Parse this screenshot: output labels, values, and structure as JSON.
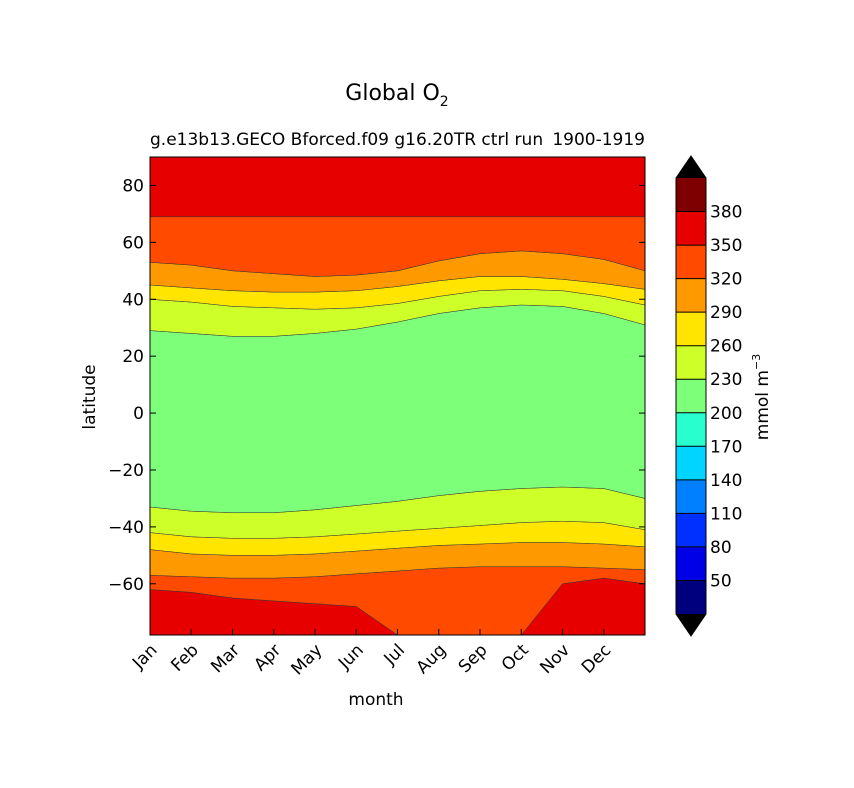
{
  "chart_data": {
    "type": "contourf",
    "title": "Global O",
    "title_subscript": "2",
    "subtitle_left": "g.e13b13.GECO Bforced.f09 g16.20TR ctrl run",
    "subtitle_right": "1900-1919",
    "xlabel": "month",
    "ylabel": "latitude",
    "x_categories": [
      "Jan",
      "Feb",
      "Mar",
      "Apr",
      "May",
      "Jun",
      "Jul",
      "Aug",
      "Sep",
      "Oct",
      "Nov",
      "Dec"
    ],
    "ylim": [
      -78,
      90
    ],
    "yticks": [
      80,
      60,
      40,
      20,
      0,
      -20,
      -40,
      -60
    ],
    "ytick_labels": [
      "80",
      "60",
      "40",
      "20",
      "0",
      "−20",
      "−40",
      "−60"
    ],
    "colorbar": {
      "label": "mmol m",
      "label_superscript": "−3",
      "levels": [
        20,
        50,
        80,
        110,
        140,
        170,
        200,
        230,
        260,
        290,
        320,
        350,
        380,
        410
      ],
      "tick_labels": [
        "50",
        "80",
        "110",
        "140",
        "170",
        "200",
        "230",
        "260",
        "290",
        "320",
        "350",
        "380"
      ],
      "colors": [
        "#00007f",
        "#0000e6",
        "#0030ff",
        "#0080ff",
        "#00d4ff",
        "#29ffce",
        "#7dff7a",
        "#ceff29",
        "#ffe500",
        "#ff9900",
        "#ff4a00",
        "#e60000",
        "#7f0000"
      ],
      "extend_low_color": "#000000",
      "extend_high_color": "#000000"
    },
    "boundaries": [
      {
        "name": "350-line-south",
        "values": [
          -62,
          -63,
          -65,
          -66,
          -67,
          -68,
          -78,
          -78,
          -78,
          -78,
          -60,
          -58,
          -60
        ]
      },
      {
        "name": "320-line-south",
        "values": [
          -57,
          -57.5,
          -58,
          -58,
          -57.5,
          -56.5,
          -55.5,
          -54.5,
          -54,
          -54,
          -54,
          -54.5,
          -55
        ]
      },
      {
        "name": "290-line-south",
        "values": [
          -48,
          -49.5,
          -50,
          -50,
          -49.5,
          -48.5,
          -47.5,
          -46.5,
          -46,
          -45.5,
          -45.5,
          -46,
          -47
        ]
      },
      {
        "name": "260-line-south",
        "values": [
          -42,
          -43.5,
          -44,
          -44,
          -43.5,
          -42.5,
          -41.5,
          -40.5,
          -39.5,
          -38.5,
          -38,
          -38.5,
          -41
        ]
      },
      {
        "name": "230-line-south",
        "values": [
          -33,
          -34.5,
          -35,
          -35,
          -34,
          -32.5,
          -31,
          -29,
          -27.5,
          -26.5,
          -26,
          -26.5,
          -30
        ]
      },
      {
        "name": "230-line-north",
        "values": [
          29,
          28,
          27,
          27,
          28,
          29.5,
          32,
          35,
          37,
          38,
          37.5,
          35,
          31
        ]
      },
      {
        "name": "260-line-north",
        "values": [
          40,
          39,
          37.5,
          37,
          36.5,
          37,
          38.5,
          41,
          43,
          43.5,
          43,
          41,
          38
        ]
      },
      {
        "name": "290-line-north",
        "values": [
          45,
          44,
          43,
          42.5,
          42.5,
          43,
          44.5,
          46.5,
          48,
          48,
          47,
          45.5,
          43.5
        ]
      },
      {
        "name": "320-line-north",
        "values": [
          53,
          52,
          50,
          49,
          48,
          48.5,
          50,
          53.5,
          56,
          57,
          56,
          54,
          50
        ]
      },
      {
        "name": "350-line-north",
        "values": [
          69,
          69,
          69,
          69,
          69,
          69,
          69,
          69,
          69,
          69,
          69,
          69,
          69
        ]
      }
    ],
    "notes": "Latitude-month contour of zonal-mean O2 concentration; colorbar extends both ends."
  }
}
